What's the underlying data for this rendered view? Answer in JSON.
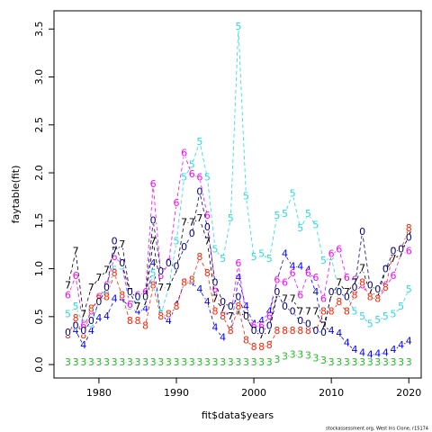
{
  "chart_data": {
    "type": "line",
    "xlabel": "fit$data$years",
    "ylabel": "faytable(fit)",
    "footnote": "stockassessment.org, West Ins Clone, r15174",
    "x": [
      1976,
      1977,
      1978,
      1979,
      1980,
      1981,
      1982,
      1983,
      1984,
      1985,
      1986,
      1987,
      1988,
      1989,
      1990,
      1991,
      1992,
      1993,
      1994,
      1995,
      1996,
      1997,
      1998,
      1999,
      2000,
      2001,
      2002,
      2003,
      2004,
      2005,
      2006,
      2007,
      2008,
      2009,
      2010,
      2011,
      2012,
      2013,
      2014,
      2015,
      2016,
      2017,
      2018,
      2019,
      2020
    ],
    "xlim": [
      1974.2,
      2021.6
    ],
    "xticks": [
      1980,
      1990,
      2000,
      2010,
      2020
    ],
    "ylim": [
      -0.14,
      3.69
    ],
    "yticks": [
      {
        "value": 0,
        "label": "0.0"
      },
      0.5,
      {
        "value": 1,
        "label": "1.0"
      },
      1.5,
      {
        "value": 2,
        "label": "2.0"
      },
      2.5,
      {
        "value": 3,
        "label": "3.0"
      },
      3.5
    ],
    "series": [
      {
        "name": "3",
        "color": "#22bb22",
        "values": [
          0.02,
          0.02,
          0.02,
          0.02,
          0.02,
          0.02,
          0.02,
          0.02,
          0.02,
          0.02,
          0.02,
          0.02,
          0.02,
          0.02,
          0.02,
          0.02,
          0.02,
          0.02,
          0.02,
          0.02,
          0.02,
          0.02,
          0.02,
          0.02,
          0.02,
          0.02,
          0.02,
          0.05,
          0.08,
          0.1,
          0.1,
          0.09,
          0.06,
          0.04,
          0.02,
          0.02,
          0.02,
          0.02,
          0.02,
          0.02,
          0.02,
          0.02,
          0.02,
          0.02,
          0.02
        ]
      },
      {
        "name": "4",
        "color": "#0000ff",
        "values": [
          0.3,
          0.35,
          0.2,
          0.35,
          0.48,
          0.5,
          0.68,
          0.68,
          0.6,
          0.55,
          0.58,
          1.05,
          0.52,
          0.45,
          0.62,
          0.85,
          0.85,
          0.78,
          0.65,
          0.38,
          0.28,
          0.35,
          0.9,
          0.6,
          0.42,
          0.45,
          0.55,
          0.88,
          1.15,
          1.02,
          1.02,
          0.98,
          0.75,
          0.4,
          0.35,
          0.32,
          0.22,
          0.15,
          0.12,
          0.1,
          0.11,
          0.12,
          0.15,
          0.2,
          0.24
        ]
      },
      {
        "name": "5",
        "color": "#22dddd",
        "values": [
          0.52,
          0.6,
          0.42,
          0.42,
          0.65,
          0.78,
          0.98,
          1.02,
          0.6,
          0.68,
          0.68,
          0.95,
          0.52,
          0.8,
          1.28,
          1.95,
          2.08,
          2.32,
          1.95,
          1.2,
          1.1,
          1.52,
          3.52,
          1.75,
          1.12,
          1.15,
          1.1,
          1.55,
          1.57,
          1.78,
          1.42,
          1.57,
          1.45,
          1.08,
          1.12,
          0.75,
          0.72,
          0.55,
          0.5,
          0.42,
          0.46,
          0.5,
          0.52,
          0.6,
          0.78
        ]
      },
      {
        "name": "6",
        "color": "#ff00ff",
        "values": [
          0.72,
          0.92,
          0.4,
          0.55,
          0.7,
          0.82,
          1.12,
          1.05,
          0.62,
          0.72,
          0.75,
          1.88,
          0.92,
          1.06,
          1.68,
          2.2,
          1.98,
          1.95,
          1.55,
          0.78,
          0.55,
          0.5,
          1.05,
          0.5,
          0.4,
          0.4,
          0.5,
          0.88,
          0.85,
          0.95,
          0.72,
          0.95,
          0.9,
          0.68,
          1.15,
          1.2,
          0.9,
          0.88,
          0.82,
          0.7,
          0.72,
          0.82,
          0.92,
          1.15,
          1.18
        ]
      },
      {
        "name": "7",
        "color": "#000000",
        "values": [
          0.82,
          1.18,
          0.52,
          0.8,
          0.9,
          0.98,
          1.18,
          1.25,
          0.75,
          0.6,
          0.65,
          1.28,
          0.8,
          0.8,
          0.98,
          1.48,
          1.48,
          1.52,
          1.28,
          0.68,
          0.58,
          0.5,
          0.55,
          0.5,
          0.35,
          0.3,
          0.35,
          0.72,
          0.68,
          0.68,
          0.55,
          0.55,
          0.55,
          0.4,
          0.72,
          0.85,
          0.75,
          0.85,
          1.0,
          0.75,
          0.72,
          0.98,
          1.1,
          1.15,
          1.35
        ]
      },
      {
        "name": "8",
        "color": "#ff2200",
        "values": [
          0.3,
          0.48,
          0.3,
          0.58,
          0.68,
          0.7,
          0.95,
          0.72,
          0.45,
          0.45,
          0.4,
          0.82,
          0.5,
          0.52,
          0.6,
          0.85,
          0.88,
          1.12,
          0.95,
          0.55,
          0.5,
          0.35,
          0.6,
          0.25,
          0.18,
          0.18,
          0.2,
          0.35,
          0.35,
          0.35,
          0.35,
          0.35,
          0.35,
          0.55,
          0.55,
          0.65,
          0.55,
          0.72,
          0.85,
          0.7,
          0.68,
          0.8,
          1.18,
          1.2,
          1.42
        ]
      },
      {
        "name": "0",
        "color": "#000080",
        "values": [
          0.33,
          0.4,
          0.35,
          0.45,
          0.65,
          0.8,
          1.28,
          1.05,
          0.75,
          0.7,
          0.7,
          1.5,
          0.97,
          1.05,
          1.02,
          1.22,
          1.36,
          1.8,
          1.43,
          0.85,
          0.65,
          0.6,
          0.7,
          0.5,
          0.35,
          0.35,
          0.4,
          0.75,
          0.6,
          0.55,
          0.45,
          0.42,
          0.35,
          0.33,
          0.75,
          0.75,
          0.7,
          0.8,
          1.38,
          0.82,
          0.78,
          0.99,
          1.18,
          1.2,
          1.32
        ]
      }
    ]
  }
}
